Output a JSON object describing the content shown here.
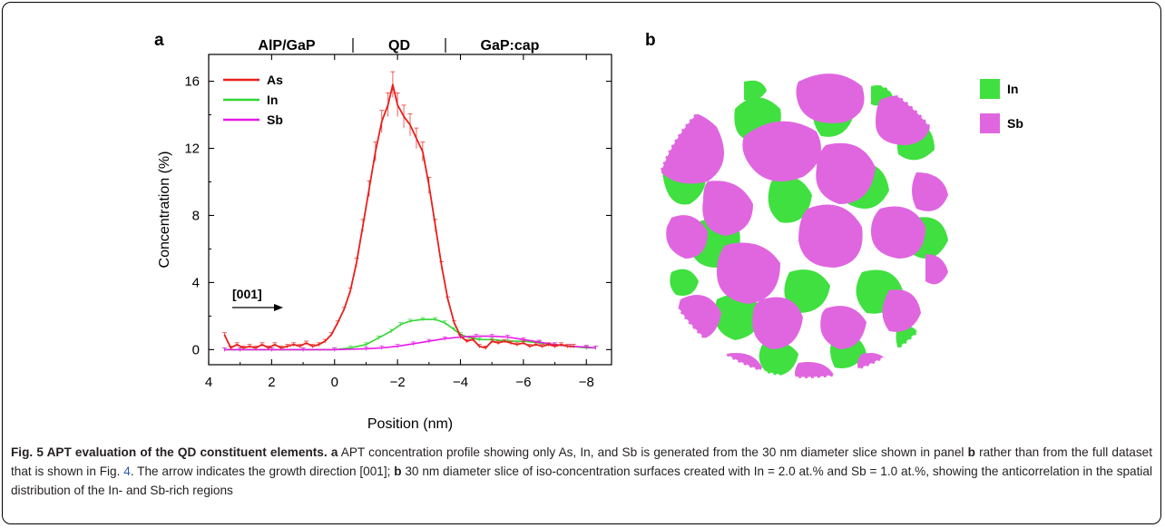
{
  "panel_a_label": "a",
  "panel_b_label": "b",
  "regions": [
    "AlP/GaP",
    "QD",
    "GaP:cap"
  ],
  "arrow_label": "[001]",
  "chart_data": {
    "type": "line",
    "xlabel": "Position (nm)",
    "ylabel": "Concentration (%)",
    "xlim": [
      4,
      -8.8
    ],
    "ylim": [
      -0.9,
      17.6
    ],
    "x_ticks": [
      4,
      2,
      0,
      -2,
      -4,
      -6,
      -8
    ],
    "x_tick_labels": [
      "4",
      "2",
      "0",
      "−2",
      "−4",
      "−6",
      "−8"
    ],
    "y_ticks": [
      0,
      4,
      8,
      12,
      16
    ],
    "y_tick_labels": [
      "0",
      "4",
      "8",
      "12",
      "16"
    ],
    "legend_position": "top-left",
    "series": [
      {
        "name": "As",
        "color": "#e8201c",
        "points": [
          [
            3.5,
            0.9
          ],
          [
            3.3,
            0.1
          ],
          [
            3.1,
            0.3
          ],
          [
            2.9,
            0.1
          ],
          [
            2.7,
            0.2
          ],
          [
            2.5,
            0.1
          ],
          [
            2.3,
            0.3
          ],
          [
            2.1,
            0.1
          ],
          [
            1.9,
            0.3
          ],
          [
            1.7,
            0.1
          ],
          [
            1.5,
            0.2
          ],
          [
            1.3,
            0.3
          ],
          [
            1.1,
            0.2
          ],
          [
            0.9,
            0.4
          ],
          [
            0.7,
            0.2
          ],
          [
            0.5,
            0.3
          ],
          [
            0.3,
            0.5
          ],
          [
            0.1,
            0.9
          ],
          [
            -0.1,
            1.6
          ],
          [
            -0.3,
            2.4
          ],
          [
            -0.5,
            3.5
          ],
          [
            -0.7,
            5.2
          ],
          [
            -0.9,
            7.4
          ],
          [
            -1.1,
            9.6
          ],
          [
            -1.3,
            11.8
          ],
          [
            -1.5,
            13.6
          ],
          [
            -1.7,
            14.6
          ],
          [
            -1.85,
            15.8
          ],
          [
            -2.0,
            14.6
          ],
          [
            -2.2,
            13.9
          ],
          [
            -2.4,
            13.4
          ],
          [
            -2.6,
            12.6
          ],
          [
            -2.8,
            11.8
          ],
          [
            -3.0,
            9.8
          ],
          [
            -3.2,
            7.4
          ],
          [
            -3.4,
            5.0
          ],
          [
            -3.6,
            3.0
          ],
          [
            -3.8,
            1.6
          ],
          [
            -4.0,
            0.8
          ],
          [
            -4.2,
            0.5
          ],
          [
            -4.4,
            0.6
          ],
          [
            -4.6,
            0.2
          ],
          [
            -4.8,
            0.1
          ],
          [
            -5.0,
            0.5
          ],
          [
            -5.2,
            0.4
          ],
          [
            -5.4,
            0.5
          ],
          [
            -5.6,
            0.4
          ],
          [
            -5.8,
            0.3
          ],
          [
            -6.0,
            0.4
          ],
          [
            -6.2,
            0.2
          ],
          [
            -6.4,
            0.3
          ],
          [
            -6.6,
            0.2
          ],
          [
            -6.8,
            0.3
          ],
          [
            -7.0,
            0.2
          ],
          [
            -7.2,
            0.3
          ],
          [
            -7.4,
            0.2
          ],
          [
            -7.6,
            0.2
          ]
        ]
      },
      {
        "name": "In",
        "color": "#33d633",
        "points": [
          [
            3.5,
            0.0
          ],
          [
            3.0,
            0.0
          ],
          [
            2.0,
            0.0
          ],
          [
            1.0,
            0.0
          ],
          [
            0.0,
            0.0
          ],
          [
            -0.5,
            0.1
          ],
          [
            -1.0,
            0.3
          ],
          [
            -1.4,
            0.7
          ],
          [
            -1.8,
            1.1
          ],
          [
            -2.1,
            1.5
          ],
          [
            -2.4,
            1.7
          ],
          [
            -2.8,
            1.8
          ],
          [
            -3.2,
            1.8
          ],
          [
            -3.5,
            1.6
          ],
          [
            -3.8,
            1.2
          ],
          [
            -4.0,
            0.9
          ],
          [
            -4.3,
            0.7
          ],
          [
            -4.6,
            0.6
          ],
          [
            -5.0,
            0.6
          ],
          [
            -5.5,
            0.5
          ],
          [
            -6.0,
            0.5
          ],
          [
            -6.5,
            0.4
          ],
          [
            -7.0,
            0.3
          ],
          [
            -7.5,
            0.2
          ],
          [
            -8.0,
            0.1
          ],
          [
            -8.3,
            0.1
          ]
        ]
      },
      {
        "name": "Sb",
        "color": "#e61ae6",
        "points": [
          [
            3.5,
            0.0
          ],
          [
            3.0,
            0.0
          ],
          [
            2.0,
            0.0
          ],
          [
            1.0,
            0.0
          ],
          [
            0.0,
            0.0
          ],
          [
            -1.0,
            0.05
          ],
          [
            -1.5,
            0.1
          ],
          [
            -2.0,
            0.2
          ],
          [
            -2.5,
            0.35
          ],
          [
            -3.0,
            0.5
          ],
          [
            -3.5,
            0.65
          ],
          [
            -4.0,
            0.75
          ],
          [
            -4.5,
            0.8
          ],
          [
            -5.0,
            0.8
          ],
          [
            -5.5,
            0.75
          ],
          [
            -6.0,
            0.6
          ],
          [
            -6.5,
            0.45
          ],
          [
            -7.0,
            0.3
          ],
          [
            -7.5,
            0.2
          ],
          [
            -8.0,
            0.15
          ],
          [
            -8.3,
            0.1
          ]
        ]
      }
    ]
  },
  "panel_b_legend": [
    {
      "label": "In",
      "color": "#3fe03f"
    },
    {
      "label": "Sb",
      "color": "#e066e0"
    }
  ],
  "caption": {
    "title": "Fig. 5 APT evaluation of the QD constituent elements.",
    "a_label": "a",
    "part1": " APT concentration profile showing only As, In, and Sb is generated from the 30 nm diameter slice shown in panel ",
    "b_ref": "b",
    "part2": " rather than from the full dataset that is shown in Fig. ",
    "fig_ref": "4",
    "part3": ". The arrow indicates the growth direction [001]; ",
    "b_label": "b",
    "part4": " 30 nm diameter slice of iso-concentration surfaces created with In = 2.0 at.% and Sb = 1.0 at.%, showing the anticorrelation in the spatial distribution of the In- and Sb-rich regions"
  }
}
